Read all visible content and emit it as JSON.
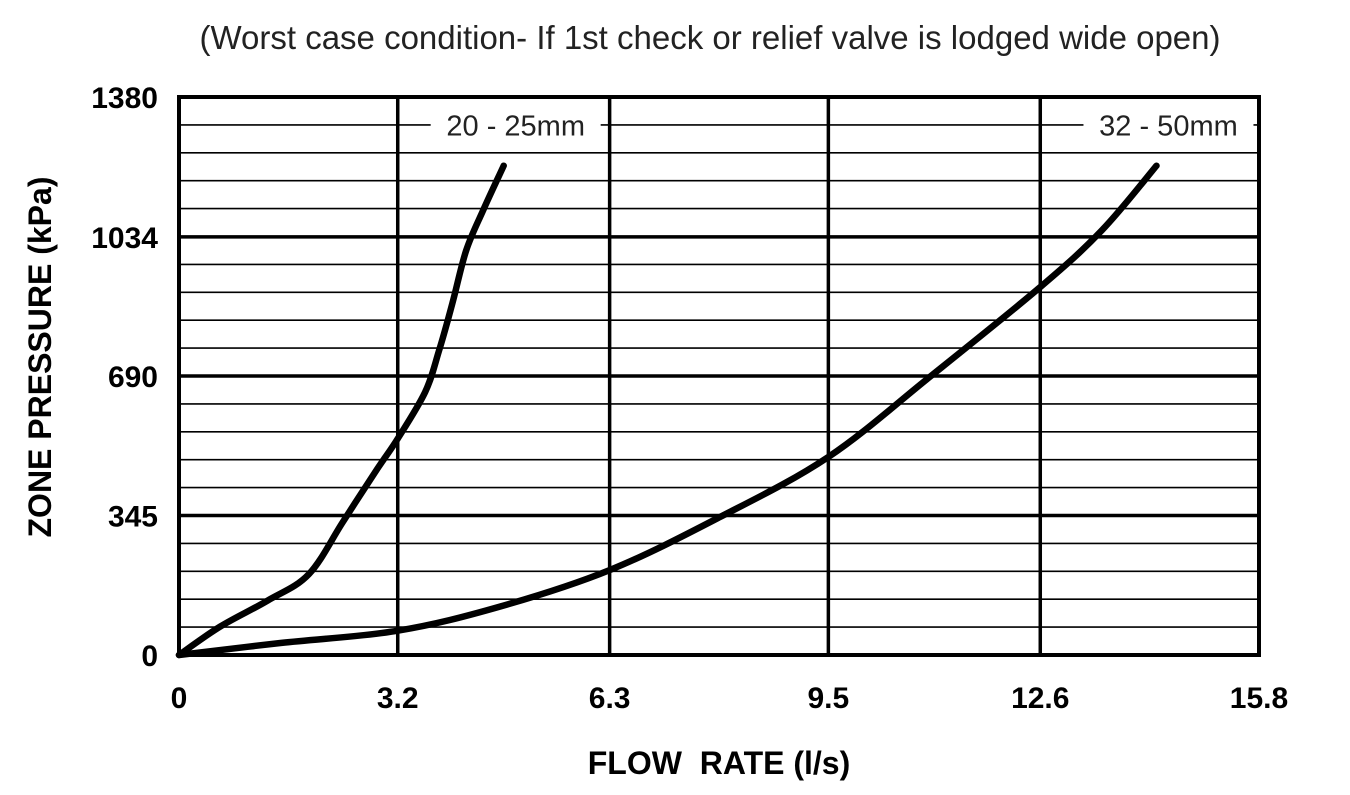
{
  "chart_data": {
    "type": "line",
    "subtitle": "(Worst case condition- If 1st check or relief valve is lodged wide open)",
    "xlabel": "FLOW  RATE (l/s)",
    "ylabel": "ZONE PRESSURE (kPa)",
    "xlim": [
      0,
      15.8
    ],
    "ylim": [
      0,
      1380
    ],
    "x_ticks": [
      "0",
      "3.2",
      "6.3",
      "9.5",
      "12.6",
      "15.8"
    ],
    "y_ticks": [
      "0",
      "345",
      "690",
      "1034",
      "1380"
    ],
    "x_tick_values": [
      0,
      3.2,
      6.3,
      9.5,
      12.6,
      15.8
    ],
    "y_tick_values": [
      0,
      345,
      690,
      1034,
      1380
    ],
    "minor_y_step": 69,
    "grid": true,
    "series": [
      {
        "name": "20 - 25mm",
        "x": [
          0,
          0.6,
          1.3,
          1.9,
          2.4,
          2.9,
          3.2,
          3.6,
          3.8,
          4.0,
          4.2,
          4.45,
          4.75
        ],
        "y": [
          0,
          70,
          135,
          200,
          330,
          460,
          535,
          650,
          750,
          870,
          1000,
          1100,
          1210
        ]
      },
      {
        "name": "32 - 50mm",
        "x": [
          0,
          1.5,
          3.2,
          4.7,
          6.3,
          7.9,
          9.5,
          11.0,
          12.6,
          13.5,
          14.3
        ],
        "y": [
          0,
          30,
          60,
          120,
          210,
          340,
          490,
          690,
          910,
          1050,
          1210
        ]
      }
    ],
    "line_color": "#000000"
  }
}
